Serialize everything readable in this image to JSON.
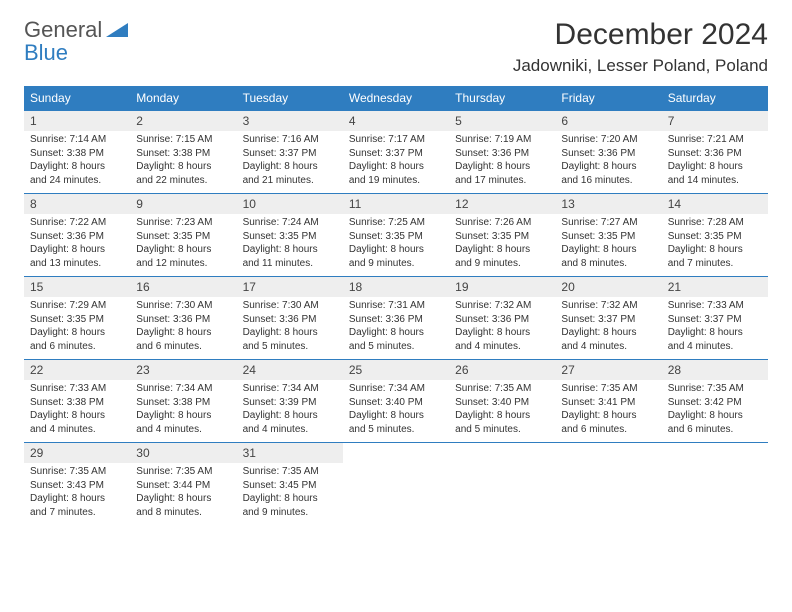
{
  "logo": {
    "line1": "General",
    "line2": "Blue",
    "line1_color": "#6a6a6a",
    "line2_color": "#2f7dc0",
    "triangle_color": "#2f7dc0"
  },
  "header": {
    "month": "December 2024",
    "location": "Jadowniki, Lesser Poland, Poland"
  },
  "theme": {
    "header_bg": "#2f7dc0",
    "header_text": "#ffffff",
    "daynum_bg": "#eeeeee",
    "border": "#2f7dc0"
  },
  "weekdays": [
    "Sunday",
    "Monday",
    "Tuesday",
    "Wednesday",
    "Thursday",
    "Friday",
    "Saturday"
  ],
  "days": [
    {
      "n": "1",
      "sr": "Sunrise: 7:14 AM",
      "ss": "Sunset: 3:38 PM",
      "d1": "Daylight: 8 hours",
      "d2": "and 24 minutes."
    },
    {
      "n": "2",
      "sr": "Sunrise: 7:15 AM",
      "ss": "Sunset: 3:38 PM",
      "d1": "Daylight: 8 hours",
      "d2": "and 22 minutes."
    },
    {
      "n": "3",
      "sr": "Sunrise: 7:16 AM",
      "ss": "Sunset: 3:37 PM",
      "d1": "Daylight: 8 hours",
      "d2": "and 21 minutes."
    },
    {
      "n": "4",
      "sr": "Sunrise: 7:17 AM",
      "ss": "Sunset: 3:37 PM",
      "d1": "Daylight: 8 hours",
      "d2": "and 19 minutes."
    },
    {
      "n": "5",
      "sr": "Sunrise: 7:19 AM",
      "ss": "Sunset: 3:36 PM",
      "d1": "Daylight: 8 hours",
      "d2": "and 17 minutes."
    },
    {
      "n": "6",
      "sr": "Sunrise: 7:20 AM",
      "ss": "Sunset: 3:36 PM",
      "d1": "Daylight: 8 hours",
      "d2": "and 16 minutes."
    },
    {
      "n": "7",
      "sr": "Sunrise: 7:21 AM",
      "ss": "Sunset: 3:36 PM",
      "d1": "Daylight: 8 hours",
      "d2": "and 14 minutes."
    },
    {
      "n": "8",
      "sr": "Sunrise: 7:22 AM",
      "ss": "Sunset: 3:36 PM",
      "d1": "Daylight: 8 hours",
      "d2": "and 13 minutes."
    },
    {
      "n": "9",
      "sr": "Sunrise: 7:23 AM",
      "ss": "Sunset: 3:35 PM",
      "d1": "Daylight: 8 hours",
      "d2": "and 12 minutes."
    },
    {
      "n": "10",
      "sr": "Sunrise: 7:24 AM",
      "ss": "Sunset: 3:35 PM",
      "d1": "Daylight: 8 hours",
      "d2": "and 11 minutes."
    },
    {
      "n": "11",
      "sr": "Sunrise: 7:25 AM",
      "ss": "Sunset: 3:35 PM",
      "d1": "Daylight: 8 hours",
      "d2": "and 9 minutes."
    },
    {
      "n": "12",
      "sr": "Sunrise: 7:26 AM",
      "ss": "Sunset: 3:35 PM",
      "d1": "Daylight: 8 hours",
      "d2": "and 9 minutes."
    },
    {
      "n": "13",
      "sr": "Sunrise: 7:27 AM",
      "ss": "Sunset: 3:35 PM",
      "d1": "Daylight: 8 hours",
      "d2": "and 8 minutes."
    },
    {
      "n": "14",
      "sr": "Sunrise: 7:28 AM",
      "ss": "Sunset: 3:35 PM",
      "d1": "Daylight: 8 hours",
      "d2": "and 7 minutes."
    },
    {
      "n": "15",
      "sr": "Sunrise: 7:29 AM",
      "ss": "Sunset: 3:35 PM",
      "d1": "Daylight: 8 hours",
      "d2": "and 6 minutes."
    },
    {
      "n": "16",
      "sr": "Sunrise: 7:30 AM",
      "ss": "Sunset: 3:36 PM",
      "d1": "Daylight: 8 hours",
      "d2": "and 6 minutes."
    },
    {
      "n": "17",
      "sr": "Sunrise: 7:30 AM",
      "ss": "Sunset: 3:36 PM",
      "d1": "Daylight: 8 hours",
      "d2": "and 5 minutes."
    },
    {
      "n": "18",
      "sr": "Sunrise: 7:31 AM",
      "ss": "Sunset: 3:36 PM",
      "d1": "Daylight: 8 hours",
      "d2": "and 5 minutes."
    },
    {
      "n": "19",
      "sr": "Sunrise: 7:32 AM",
      "ss": "Sunset: 3:36 PM",
      "d1": "Daylight: 8 hours",
      "d2": "and 4 minutes."
    },
    {
      "n": "20",
      "sr": "Sunrise: 7:32 AM",
      "ss": "Sunset: 3:37 PM",
      "d1": "Daylight: 8 hours",
      "d2": "and 4 minutes."
    },
    {
      "n": "21",
      "sr": "Sunrise: 7:33 AM",
      "ss": "Sunset: 3:37 PM",
      "d1": "Daylight: 8 hours",
      "d2": "and 4 minutes."
    },
    {
      "n": "22",
      "sr": "Sunrise: 7:33 AM",
      "ss": "Sunset: 3:38 PM",
      "d1": "Daylight: 8 hours",
      "d2": "and 4 minutes."
    },
    {
      "n": "23",
      "sr": "Sunrise: 7:34 AM",
      "ss": "Sunset: 3:38 PM",
      "d1": "Daylight: 8 hours",
      "d2": "and 4 minutes."
    },
    {
      "n": "24",
      "sr": "Sunrise: 7:34 AM",
      "ss": "Sunset: 3:39 PM",
      "d1": "Daylight: 8 hours",
      "d2": "and 4 minutes."
    },
    {
      "n": "25",
      "sr": "Sunrise: 7:34 AM",
      "ss": "Sunset: 3:40 PM",
      "d1": "Daylight: 8 hours",
      "d2": "and 5 minutes."
    },
    {
      "n": "26",
      "sr": "Sunrise: 7:35 AM",
      "ss": "Sunset: 3:40 PM",
      "d1": "Daylight: 8 hours",
      "d2": "and 5 minutes."
    },
    {
      "n": "27",
      "sr": "Sunrise: 7:35 AM",
      "ss": "Sunset: 3:41 PM",
      "d1": "Daylight: 8 hours",
      "d2": "and 6 minutes."
    },
    {
      "n": "28",
      "sr": "Sunrise: 7:35 AM",
      "ss": "Sunset: 3:42 PM",
      "d1": "Daylight: 8 hours",
      "d2": "and 6 minutes."
    },
    {
      "n": "29",
      "sr": "Sunrise: 7:35 AM",
      "ss": "Sunset: 3:43 PM",
      "d1": "Daylight: 8 hours",
      "d2": "and 7 minutes."
    },
    {
      "n": "30",
      "sr": "Sunrise: 7:35 AM",
      "ss": "Sunset: 3:44 PM",
      "d1": "Daylight: 8 hours",
      "d2": "and 8 minutes."
    },
    {
      "n": "31",
      "sr": "Sunrise: 7:35 AM",
      "ss": "Sunset: 3:45 PM",
      "d1": "Daylight: 8 hours",
      "d2": "and 9 minutes."
    }
  ],
  "trailing_empty": 4
}
